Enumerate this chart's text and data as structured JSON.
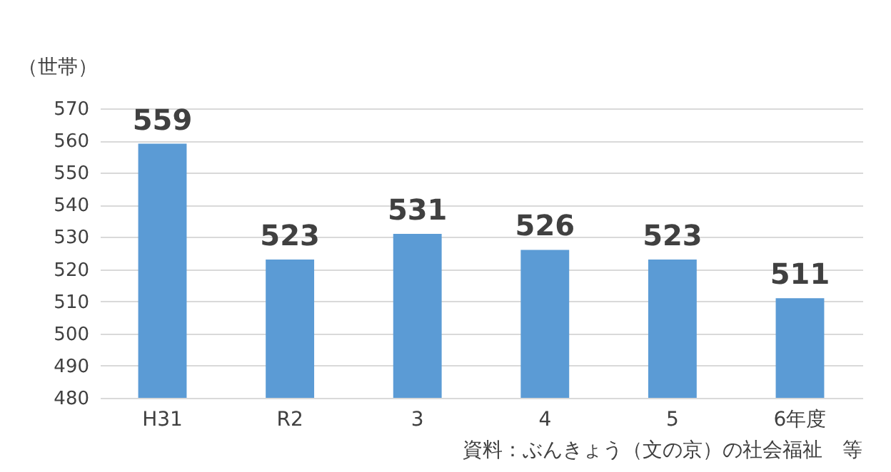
{
  "chart_data": {
    "type": "bar",
    "ylabel": "（世帯）",
    "categories": [
      "H31",
      "R2",
      "3",
      "4",
      "5",
      "6年度"
    ],
    "values": [
      559,
      523,
      531,
      526,
      523,
      511
    ],
    "color": "#5b9bd5",
    "ylim": [
      480,
      570
    ],
    "yticks": [
      480,
      490,
      500,
      510,
      520,
      530,
      540,
      550,
      560,
      570
    ],
    "grid": "y",
    "data_labels": true,
    "annotations": [
      "資料：ぶんきょう（文の京）の社会福祉　等"
    ]
  }
}
